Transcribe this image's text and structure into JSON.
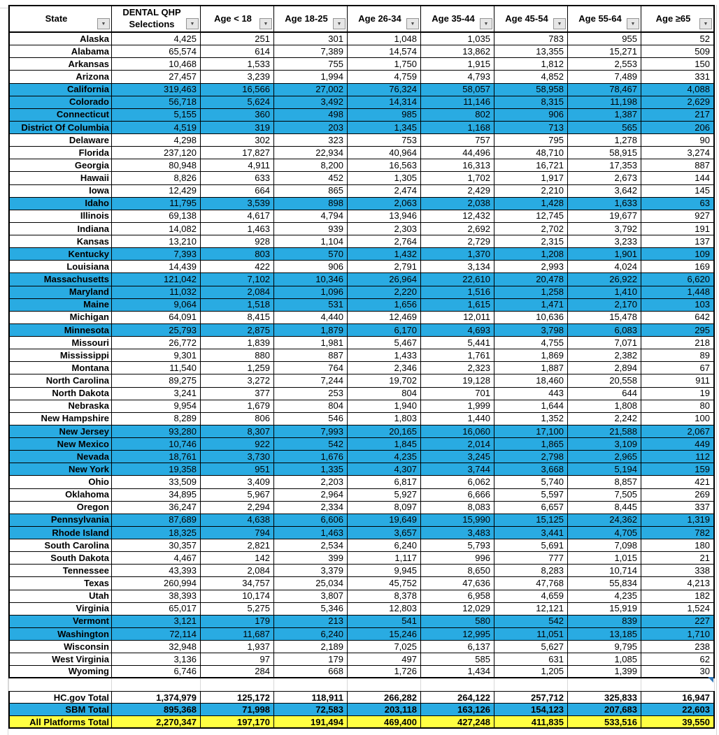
{
  "table": {
    "columns": [
      {
        "key": "state",
        "label": "State"
      },
      {
        "key": "dental-qhp-selections",
        "label": "DENTAL QHP Selections"
      },
      {
        "key": "age-lt-18",
        "label": "Age < 18"
      },
      {
        "key": "age-18-25",
        "label": "Age 18-25"
      },
      {
        "key": "age-26-34",
        "label": "Age 26-34"
      },
      {
        "key": "age-35-44",
        "label": "Age 35-44"
      },
      {
        "key": "age-45-54",
        "label": "Age 45-54"
      },
      {
        "key": "age-55-64",
        "label": "Age 55-64"
      },
      {
        "key": "age-ge-65",
        "label": "Age ≥65"
      }
    ],
    "rows": [
      {
        "state": "Alaska",
        "highlight": false,
        "values": [
          "4,425",
          "251",
          "301",
          "1,048",
          "1,035",
          "783",
          "955",
          "52"
        ]
      },
      {
        "state": "Alabama",
        "highlight": false,
        "values": [
          "65,574",
          "614",
          "7,389",
          "14,574",
          "13,862",
          "13,355",
          "15,271",
          "509"
        ]
      },
      {
        "state": "Arkansas",
        "highlight": false,
        "values": [
          "10,468",
          "1,533",
          "755",
          "1,750",
          "1,915",
          "1,812",
          "2,553",
          "150"
        ]
      },
      {
        "state": "Arizona",
        "highlight": false,
        "values": [
          "27,457",
          "3,239",
          "1,994",
          "4,759",
          "4,793",
          "4,852",
          "7,489",
          "331"
        ]
      },
      {
        "state": "California",
        "highlight": true,
        "values": [
          "319,463",
          "16,566",
          "27,002",
          "76,324",
          "58,057",
          "58,958",
          "78,467",
          "4,088"
        ]
      },
      {
        "state": "Colorado",
        "highlight": true,
        "values": [
          "56,718",
          "5,624",
          "3,492",
          "14,314",
          "11,146",
          "8,315",
          "11,198",
          "2,629"
        ]
      },
      {
        "state": "Connecticut",
        "highlight": true,
        "values": [
          "5,155",
          "360",
          "498",
          "985",
          "802",
          "906",
          "1,387",
          "217"
        ]
      },
      {
        "state": "District Of Columbia",
        "highlight": true,
        "values": [
          "4,519",
          "319",
          "203",
          "1,345",
          "1,168",
          "713",
          "565",
          "206"
        ]
      },
      {
        "state": "Delaware",
        "highlight": false,
        "values": [
          "4,298",
          "302",
          "323",
          "753",
          "757",
          "795",
          "1,278",
          "90"
        ]
      },
      {
        "state": "Florida",
        "highlight": false,
        "values": [
          "237,120",
          "17,827",
          "22,934",
          "40,964",
          "44,496",
          "48,710",
          "58,915",
          "3,274"
        ]
      },
      {
        "state": "Georgia",
        "highlight": false,
        "values": [
          "80,948",
          "4,911",
          "8,200",
          "16,563",
          "16,313",
          "16,721",
          "17,353",
          "887"
        ]
      },
      {
        "state": "Hawaii",
        "highlight": false,
        "values": [
          "8,826",
          "633",
          "452",
          "1,305",
          "1,702",
          "1,917",
          "2,673",
          "144"
        ]
      },
      {
        "state": "Iowa",
        "highlight": false,
        "values": [
          "12,429",
          "664",
          "865",
          "2,474",
          "2,429",
          "2,210",
          "3,642",
          "145"
        ]
      },
      {
        "state": "Idaho",
        "highlight": true,
        "values": [
          "11,795",
          "3,539",
          "898",
          "2,063",
          "2,038",
          "1,428",
          "1,633",
          "63"
        ]
      },
      {
        "state": "Illinois",
        "highlight": false,
        "values": [
          "69,138",
          "4,617",
          "4,794",
          "13,946",
          "12,432",
          "12,745",
          "19,677",
          "927"
        ]
      },
      {
        "state": "Indiana",
        "highlight": false,
        "values": [
          "14,082",
          "1,463",
          "939",
          "2,303",
          "2,692",
          "2,702",
          "3,792",
          "191"
        ]
      },
      {
        "state": "Kansas",
        "highlight": false,
        "values": [
          "13,210",
          "928",
          "1,104",
          "2,764",
          "2,729",
          "2,315",
          "3,233",
          "137"
        ]
      },
      {
        "state": "Kentucky",
        "highlight": true,
        "values": [
          "7,393",
          "803",
          "570",
          "1,432",
          "1,370",
          "1,208",
          "1,901",
          "109"
        ]
      },
      {
        "state": "Louisiana",
        "highlight": false,
        "values": [
          "14,439",
          "422",
          "906",
          "2,791",
          "3,134",
          "2,993",
          "4,024",
          "169"
        ]
      },
      {
        "state": "Massachusetts",
        "highlight": true,
        "values": [
          "121,042",
          "7,102",
          "10,346",
          "26,964",
          "22,610",
          "20,478",
          "26,922",
          "6,620"
        ]
      },
      {
        "state": "Maryland",
        "highlight": true,
        "values": [
          "11,032",
          "2,084",
          "1,096",
          "2,220",
          "1,516",
          "1,258",
          "1,410",
          "1,448"
        ]
      },
      {
        "state": "Maine",
        "highlight": true,
        "values": [
          "9,064",
          "1,518",
          "531",
          "1,656",
          "1,615",
          "1,471",
          "2,170",
          "103"
        ]
      },
      {
        "state": "Michigan",
        "highlight": false,
        "values": [
          "64,091",
          "8,415",
          "4,440",
          "12,469",
          "12,011",
          "10,636",
          "15,478",
          "642"
        ]
      },
      {
        "state": "Minnesota",
        "highlight": true,
        "values": [
          "25,793",
          "2,875",
          "1,879",
          "6,170",
          "4,693",
          "3,798",
          "6,083",
          "295"
        ]
      },
      {
        "state": "Missouri",
        "highlight": false,
        "values": [
          "26,772",
          "1,839",
          "1,981",
          "5,467",
          "5,441",
          "4,755",
          "7,071",
          "218"
        ]
      },
      {
        "state": "Mississippi",
        "highlight": false,
        "values": [
          "9,301",
          "880",
          "887",
          "1,433",
          "1,761",
          "1,869",
          "2,382",
          "89"
        ]
      },
      {
        "state": "Montana",
        "highlight": false,
        "values": [
          "11,540",
          "1,259",
          "764",
          "2,346",
          "2,323",
          "1,887",
          "2,894",
          "67"
        ]
      },
      {
        "state": "North Carolina",
        "highlight": false,
        "values": [
          "89,275",
          "3,272",
          "7,244",
          "19,702",
          "19,128",
          "18,460",
          "20,558",
          "911"
        ]
      },
      {
        "state": "North Dakota",
        "highlight": false,
        "values": [
          "3,241",
          "377",
          "253",
          "804",
          "701",
          "443",
          "644",
          "19"
        ]
      },
      {
        "state": "Nebraska",
        "highlight": false,
        "values": [
          "9,954",
          "1,679",
          "804",
          "1,940",
          "1,999",
          "1,644",
          "1,808",
          "80"
        ]
      },
      {
        "state": "New Hampshire",
        "highlight": false,
        "values": [
          "8,289",
          "806",
          "546",
          "1,803",
          "1,440",
          "1,352",
          "2,242",
          "100"
        ]
      },
      {
        "state": "New Jersey",
        "highlight": true,
        "values": [
          "93,280",
          "8,307",
          "7,993",
          "20,165",
          "16,060",
          "17,100",
          "21,588",
          "2,067"
        ]
      },
      {
        "state": "New Mexico",
        "highlight": true,
        "values": [
          "10,746",
          "922",
          "542",
          "1,845",
          "2,014",
          "1,865",
          "3,109",
          "449"
        ]
      },
      {
        "state": "Nevada",
        "highlight": true,
        "values": [
          "18,761",
          "3,730",
          "1,676",
          "4,235",
          "3,245",
          "2,798",
          "2,965",
          "112"
        ]
      },
      {
        "state": "New York",
        "highlight": true,
        "values": [
          "19,358",
          "951",
          "1,335",
          "4,307",
          "3,744",
          "3,668",
          "5,194",
          "159"
        ]
      },
      {
        "state": "Ohio",
        "highlight": false,
        "values": [
          "33,509",
          "3,409",
          "2,203",
          "6,817",
          "6,062",
          "5,740",
          "8,857",
          "421"
        ]
      },
      {
        "state": "Oklahoma",
        "highlight": false,
        "values": [
          "34,895",
          "5,967",
          "2,964",
          "5,927",
          "6,666",
          "5,597",
          "7,505",
          "269"
        ]
      },
      {
        "state": "Oregon",
        "highlight": false,
        "values": [
          "36,247",
          "2,294",
          "2,334",
          "8,097",
          "8,083",
          "6,657",
          "8,445",
          "337"
        ]
      },
      {
        "state": "Pennsylvania",
        "highlight": true,
        "values": [
          "87,689",
          "4,638",
          "6,606",
          "19,649",
          "15,990",
          "15,125",
          "24,362",
          "1,319"
        ]
      },
      {
        "state": "Rhode Island",
        "highlight": true,
        "values": [
          "18,325",
          "794",
          "1,463",
          "3,657",
          "3,483",
          "3,441",
          "4,705",
          "782"
        ]
      },
      {
        "state": "South Carolina",
        "highlight": false,
        "values": [
          "30,357",
          "2,821",
          "2,534",
          "6,240",
          "5,793",
          "5,691",
          "7,098",
          "180"
        ]
      },
      {
        "state": "South Dakota",
        "highlight": false,
        "values": [
          "4,467",
          "142",
          "399",
          "1,117",
          "996",
          "777",
          "1,015",
          "21"
        ]
      },
      {
        "state": "Tennessee",
        "highlight": false,
        "values": [
          "43,393",
          "2,084",
          "3,379",
          "9,945",
          "8,650",
          "8,283",
          "10,714",
          "338"
        ]
      },
      {
        "state": "Texas",
        "highlight": false,
        "values": [
          "260,994",
          "34,757",
          "25,034",
          "45,752",
          "47,636",
          "47,768",
          "55,834",
          "4,213"
        ]
      },
      {
        "state": "Utah",
        "highlight": false,
        "values": [
          "38,393",
          "10,174",
          "3,807",
          "8,378",
          "6,958",
          "4,659",
          "4,235",
          "182"
        ]
      },
      {
        "state": "Virginia",
        "highlight": false,
        "values": [
          "65,017",
          "5,275",
          "5,346",
          "12,803",
          "12,029",
          "12,121",
          "15,919",
          "1,524"
        ]
      },
      {
        "state": "Vermont",
        "highlight": true,
        "values": [
          "3,121",
          "179",
          "213",
          "541",
          "580",
          "542",
          "839",
          "227"
        ]
      },
      {
        "state": "Washington",
        "highlight": true,
        "values": [
          "72,114",
          "11,687",
          "6,240",
          "15,246",
          "12,995",
          "11,051",
          "13,185",
          "1,710"
        ]
      },
      {
        "state": "Wisconsin",
        "highlight": false,
        "values": [
          "32,948",
          "1,937",
          "2,189",
          "7,025",
          "6,137",
          "5,627",
          "9,795",
          "238"
        ]
      },
      {
        "state": "West Virginia",
        "highlight": false,
        "values": [
          "3,136",
          "97",
          "179",
          "497",
          "585",
          "631",
          "1,085",
          "62"
        ]
      },
      {
        "state": "Wyoming",
        "highlight": false,
        "values": [
          "6,746",
          "284",
          "668",
          "1,726",
          "1,434",
          "1,205",
          "1,399",
          "30"
        ]
      }
    ],
    "totals": [
      {
        "label": "HC.gov Total",
        "style": "plain",
        "values": [
          "1,374,979",
          "125,172",
          "118,911",
          "266,282",
          "264,122",
          "257,712",
          "325,833",
          "16,947"
        ]
      },
      {
        "label": "SBM Total",
        "style": "blue",
        "values": [
          "895,368",
          "71,998",
          "72,583",
          "203,118",
          "163,126",
          "154,123",
          "207,683",
          "22,603"
        ]
      },
      {
        "label": "All Platforms Total",
        "style": "yellow",
        "values": [
          "2,270,347",
          "197,170",
          "191,494",
          "469,400",
          "427,248",
          "411,835",
          "533,516",
          "39,550"
        ]
      }
    ]
  },
  "icons": {
    "filter_dropdown_glyph": "▼"
  },
  "colors": {
    "highlight_blue": "#29abe2",
    "total_yellow": "#ffff42",
    "range_corner_marker_blue": "#2e75b6",
    "gridline_gray": "#d8d8d8"
  }
}
